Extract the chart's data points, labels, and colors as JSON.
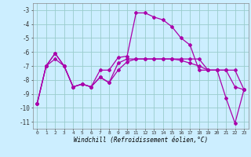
{
  "xlabel": "Windchill (Refroidissement éolien,°C)",
  "background_color": "#cceeff",
  "grid_color": "#99cccc",
  "line_color": "#aa00aa",
  "x": [
    0,
    1,
    2,
    3,
    4,
    5,
    6,
    7,
    8,
    9,
    10,
    11,
    12,
    13,
    14,
    15,
    16,
    17,
    18,
    19,
    20,
    21,
    22,
    23
  ],
  "line1": [
    -9.7,
    -7.0,
    -6.1,
    -7.0,
    -8.5,
    -8.3,
    -8.5,
    -7.3,
    -7.3,
    -6.4,
    -6.3,
    -3.2,
    -3.2,
    -3.5,
    -3.7,
    -4.2,
    -5.0,
    -5.5,
    -7.3,
    -7.3,
    -7.3,
    -9.3,
    -11.1,
    -8.7
  ],
  "line2": [
    -9.7,
    -7.0,
    -6.5,
    -7.0,
    -8.5,
    -8.3,
    -8.5,
    -7.8,
    -8.2,
    -6.8,
    -6.5,
    -6.5,
    -6.5,
    -6.5,
    -6.5,
    -6.5,
    -6.5,
    -6.5,
    -6.5,
    -7.3,
    -7.3,
    -7.3,
    -8.5,
    -8.7
  ],
  "line3": [
    -9.7,
    -7.0,
    -6.1,
    -7.0,
    -8.5,
    -8.3,
    -8.5,
    -7.8,
    -8.2,
    -7.3,
    -6.7,
    -6.5,
    -6.5,
    -6.5,
    -6.5,
    -6.5,
    -6.6,
    -6.8,
    -7.0,
    -7.3,
    -7.3,
    -7.3,
    -7.3,
    -8.7
  ],
  "ylim": [
    -11.5,
    -2.5
  ],
  "yticks": [
    -11,
    -10,
    -9,
    -8,
    -7,
    -6,
    -5,
    -4,
    -3
  ],
  "xticks": [
    0,
    1,
    2,
    3,
    4,
    5,
    6,
    7,
    8,
    9,
    10,
    11,
    12,
    13,
    14,
    15,
    16,
    17,
    18,
    19,
    20,
    21,
    22,
    23
  ]
}
